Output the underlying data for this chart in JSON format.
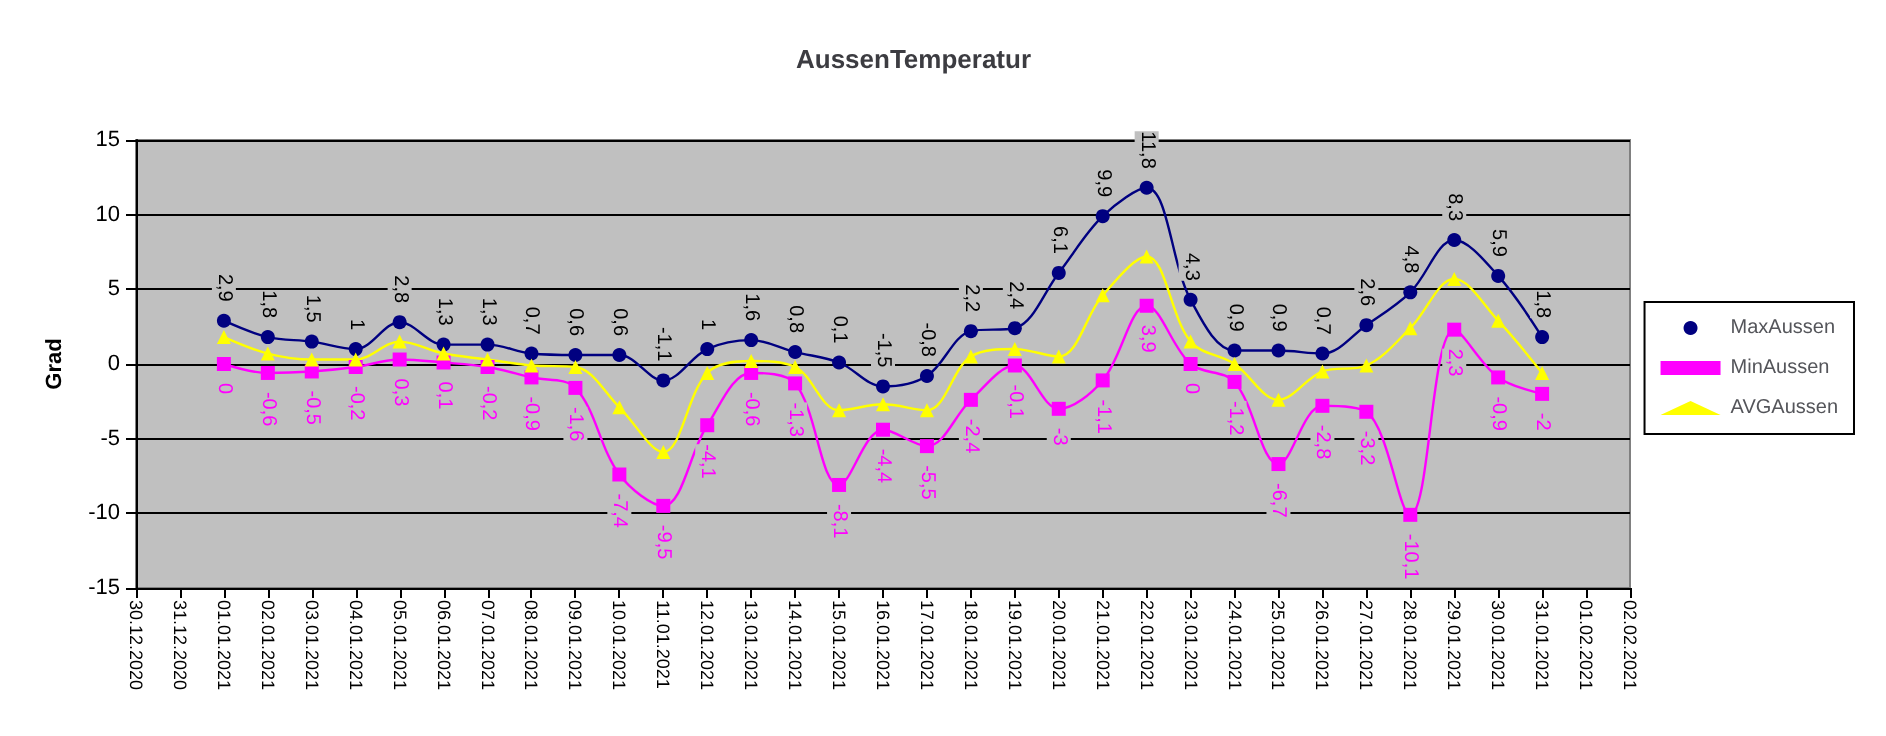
{
  "chart_data": {
    "type": "line",
    "title": "AussenTemperatur",
    "ylabel": "Grad",
    "categories": [
      "30.12.2020",
      "31.12.2020",
      "01.01.2021",
      "02.01.2021",
      "03.01.2021",
      "04.01.2021",
      "05.01.2021",
      "06.01.2021",
      "07.01.2021",
      "08.01.2021",
      "09.01.2021",
      "10.01.2021",
      "11.01.2021",
      "12.01.2021",
      "13.01.2021",
      "14.01.2021",
      "15.01.2021",
      "16.01.2021",
      "17.01.2021",
      "18.01.2021",
      "19.01.2021",
      "20.01.2021",
      "21.01.2021",
      "22.01.2021",
      "23.01.2021",
      "24.01.2021",
      "25.01.2021",
      "26.01.2021",
      "27.01.2021",
      "28.01.2021",
      "29.01.2021",
      "30.01.2021",
      "31.01.2021",
      "01.02.2021",
      "02.02.2021"
    ],
    "series": [
      {
        "name": "MaxAussen",
        "color": "#000080",
        "marker": "circle",
        "values": [
          null,
          null,
          2.9,
          1.8,
          1.5,
          1,
          2.8,
          1.3,
          1.3,
          0.7,
          0.6,
          0.6,
          -1.1,
          1,
          1.6,
          0.8,
          0.1,
          -1.5,
          -0.8,
          2.2,
          2.4,
          6.1,
          9.9,
          11.8,
          4.3,
          0.9,
          0.9,
          0.7,
          2.6,
          4.8,
          8.3,
          5.9,
          1.8,
          null,
          null
        ],
        "value_labels": [
          null,
          null,
          "2,9",
          "1,8",
          "1,5",
          "1",
          "2,8",
          "1,3",
          "1,3",
          "0,7",
          "0,6",
          "0,6",
          "-1,1",
          "1",
          "1,6",
          "0,8",
          "0,1",
          "-1,5",
          "-0,8",
          "2,2",
          "2,4",
          "6,1",
          "9,9",
          "11,8",
          "4,3",
          "0,9",
          "0,9",
          "0,7",
          "2,6",
          "4,8",
          "8,3",
          "5,9",
          "1,8",
          null,
          null
        ]
      },
      {
        "name": "MinAussen",
        "color": "#ff00ff",
        "marker": "square",
        "values": [
          null,
          null,
          0,
          -0.6,
          -0.5,
          -0.2,
          0.3,
          0.1,
          -0.2,
          -0.9,
          -1.6,
          -7.4,
          -9.5,
          -4.1,
          -0.6,
          -1.3,
          -8.1,
          -4.4,
          -5.5,
          -2.4,
          -0.1,
          -3,
          -1.1,
          3.9,
          0,
          -1.2,
          -6.7,
          -2.8,
          -3.2,
          -10.1,
          2.3,
          -0.9,
          -2,
          null,
          null
        ],
        "value_labels": [
          null,
          null,
          "0",
          "-0,6",
          "-0,5",
          "-0,2",
          "0,3",
          "0,1",
          "-0,2",
          "-0,9",
          "-1,6",
          "-7,4",
          "-9,5",
          "-4,1",
          "-0,6",
          "-1,3",
          "-8,1",
          "-4,4",
          "-5,5",
          "-2,4",
          "-0,1",
          "-3",
          "-1,1",
          "3,9",
          "0",
          "-1,2",
          "-6,7",
          "-2,8",
          "-3,2",
          "-10,1",
          "2,3",
          "-0,9",
          "-2",
          null,
          null
        ]
      },
      {
        "name": "AVGAussen",
        "color": "#ffff00",
        "marker": "triangle",
        "values": [
          null,
          null,
          1.8,
          0.7,
          0.3,
          0.3,
          1.5,
          0.7,
          0.3,
          -0.1,
          -0.2,
          -2.9,
          -5.9,
          -0.6,
          0.2,
          -0.2,
          -3.1,
          -2.7,
          -3.1,
          0.5,
          1,
          0.5,
          4.6,
          7.2,
          1.5,
          0,
          -2.4,
          -0.5,
          -0.1,
          2.4,
          5.7,
          2.9,
          -0.6,
          null,
          null
        ]
      }
    ],
    "ylim": [
      -15,
      15
    ],
    "yticks": [
      -15,
      -10,
      -5,
      0,
      5,
      10,
      15
    ],
    "grid": "y",
    "legend": "right"
  }
}
